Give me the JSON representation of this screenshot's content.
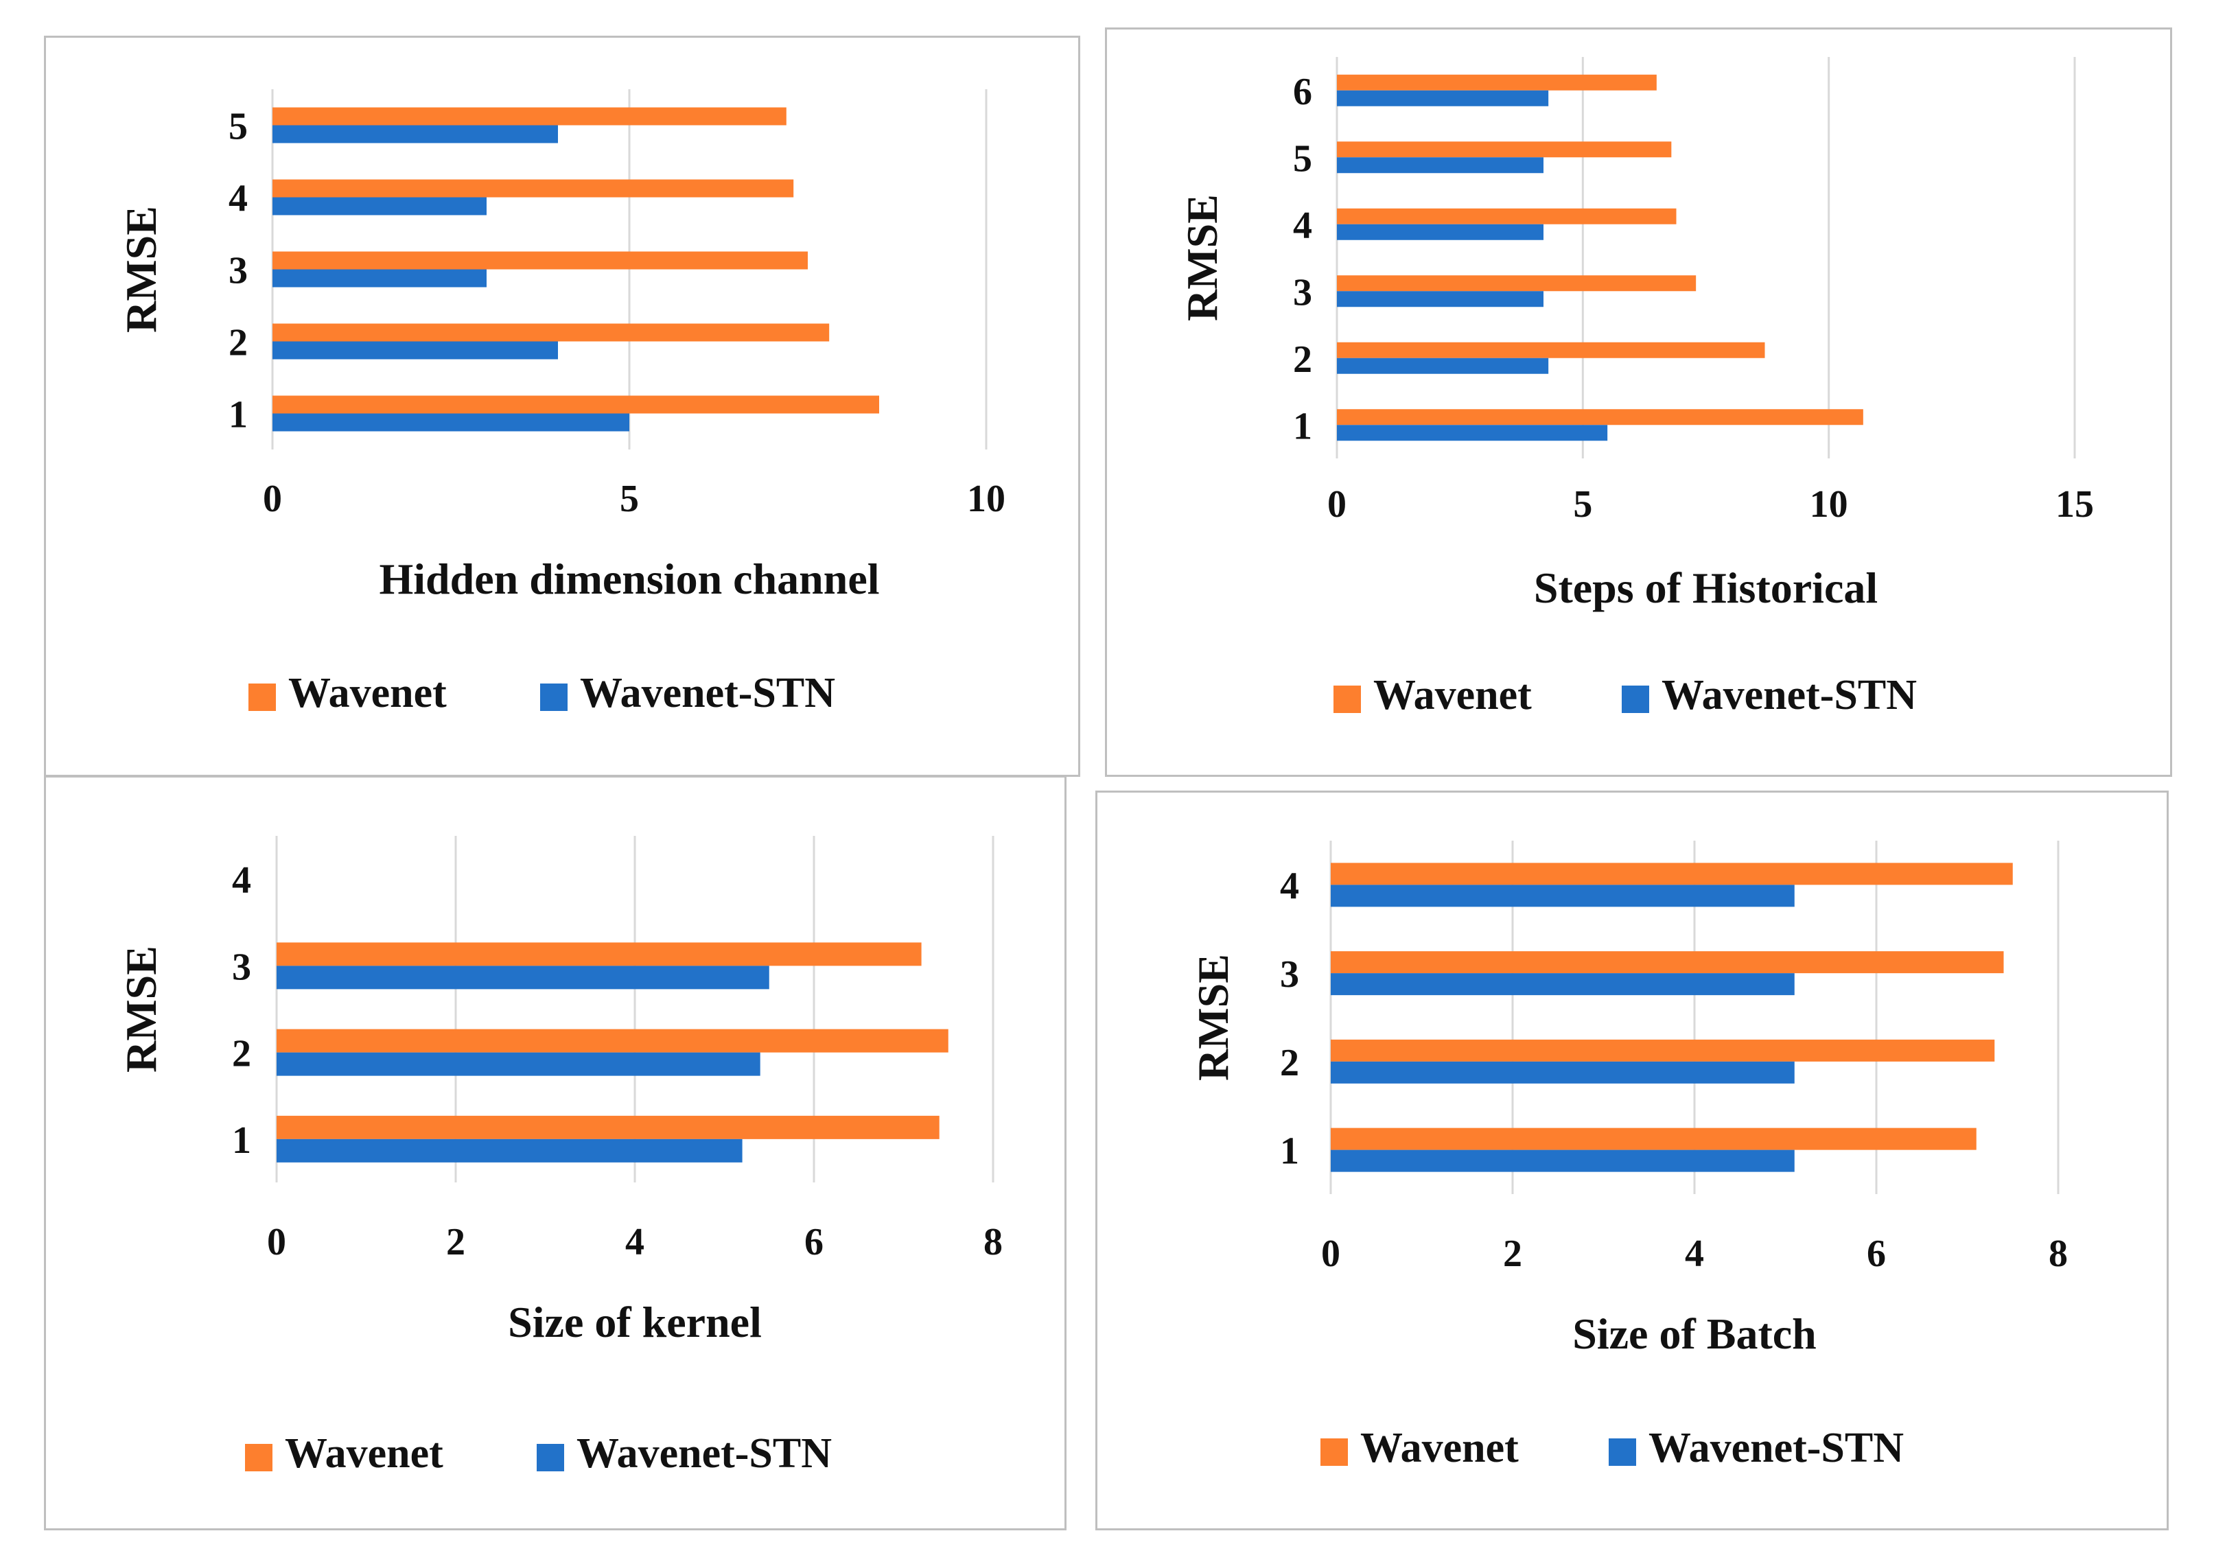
{
  "legend": {
    "series_1": "Wavenet",
    "series_2": "Wavenet-STN"
  },
  "colors": {
    "wavenet": "#fd7f2e",
    "wavenet_stn": "#2272c9",
    "grid": "#d9d9d9",
    "border": "#bfbfbf"
  },
  "chart_data": [
    {
      "type": "bar",
      "orientation": "horizontal",
      "title": "",
      "xlabel": "Hidden dimension channel",
      "ylabel": "RMSE",
      "categories": [
        "1",
        "2",
        "3",
        "4",
        "5"
      ],
      "xlim": [
        0,
        10
      ],
      "xticks": [
        0,
        5,
        10
      ],
      "grid": true,
      "legend_position": "bottom",
      "series": [
        {
          "name": "Wavenet",
          "values": [
            8.5,
            7.8,
            7.5,
            7.3,
            7.2
          ]
        },
        {
          "name": "Wavenet-STN",
          "values": [
            5.0,
            4.0,
            3.0,
            3.0,
            4.0
          ]
        }
      ]
    },
    {
      "type": "bar",
      "orientation": "horizontal",
      "title": "",
      "xlabel": "Steps of Historical",
      "ylabel": "RMSE",
      "categories": [
        "1",
        "2",
        "3",
        "4",
        "5",
        "6"
      ],
      "xlim": [
        0,
        15
      ],
      "xticks": [
        0,
        5,
        10,
        15
      ],
      "grid": true,
      "legend_position": "bottom",
      "series": [
        {
          "name": "Wavenet",
          "values": [
            10.7,
            8.7,
            7.3,
            6.9,
            6.8,
            6.5
          ]
        },
        {
          "name": "Wavenet-STN",
          "values": [
            5.5,
            4.3,
            4.2,
            4.2,
            4.2,
            4.3
          ]
        }
      ]
    },
    {
      "type": "bar",
      "orientation": "horizontal",
      "title": "",
      "xlabel": "Size of kernel",
      "ylabel": "RMSE",
      "categories": [
        "1",
        "2",
        "3",
        "4"
      ],
      "xlim": [
        0,
        8
      ],
      "xticks": [
        0,
        2,
        4,
        6,
        8
      ],
      "grid": true,
      "legend_position": "bottom",
      "series": [
        {
          "name": "Wavenet",
          "values": [
            7.4,
            7.5,
            7.2,
            null
          ]
        },
        {
          "name": "Wavenet-STN",
          "values": [
            5.2,
            5.4,
            5.5,
            null
          ]
        }
      ]
    },
    {
      "type": "bar",
      "orientation": "horizontal",
      "title": "",
      "xlabel": "Size of Batch",
      "ylabel": "RMSE",
      "categories": [
        "1",
        "2",
        "3",
        "4"
      ],
      "xlim": [
        0,
        8
      ],
      "xticks": [
        0,
        2,
        4,
        6,
        8
      ],
      "grid": true,
      "legend_position": "bottom",
      "series": [
        {
          "name": "Wavenet",
          "values": [
            7.1,
            7.3,
            7.4,
            7.5
          ]
        },
        {
          "name": "Wavenet-STN",
          "values": [
            5.1,
            5.1,
            5.1,
            5.1
          ]
        }
      ]
    }
  ]
}
